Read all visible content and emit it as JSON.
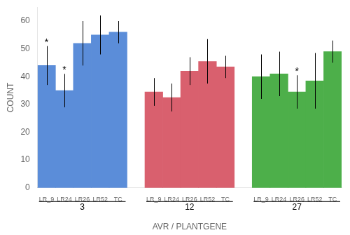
{
  "chart_data": {
    "type": "bar",
    "xlabel": "AVR / PLANTGENE",
    "ylabel": "COUNT",
    "categories": [
      "LR_9",
      "LR24",
      "LR26",
      "LR52",
      "TC"
    ],
    "series": [
      {
        "name": "3",
        "color": "#5b8dd9",
        "values": [
          44,
          35,
          52,
          55,
          56
        ],
        "errors": [
          7,
          6,
          8,
          7,
          4
        ]
      },
      {
        "name": "12",
        "color": "#d9606e",
        "values": [
          34.5,
          32.5,
          42,
          45.5,
          43.5
        ],
        "errors": [
          5,
          5,
          5,
          8,
          4
        ]
      },
      {
        "name": "27",
        "color": "#4daf4a",
        "values": [
          40,
          41,
          34.5,
          38.5,
          49
        ],
        "errors": [
          8,
          8,
          6,
          10,
          4
        ]
      }
    ],
    "annotations": [
      {
        "text": "*",
        "series": "3",
        "category": "LR_9"
      },
      {
        "text": "*",
        "series": "3",
        "category": "LR24"
      },
      {
        "text": "*",
        "series": "27",
        "category": "LR26"
      }
    ],
    "ylim": [
      0,
      65
    ],
    "yticks": [
      0,
      10,
      20,
      30,
      40,
      50,
      60
    ],
    "grid": false
  }
}
